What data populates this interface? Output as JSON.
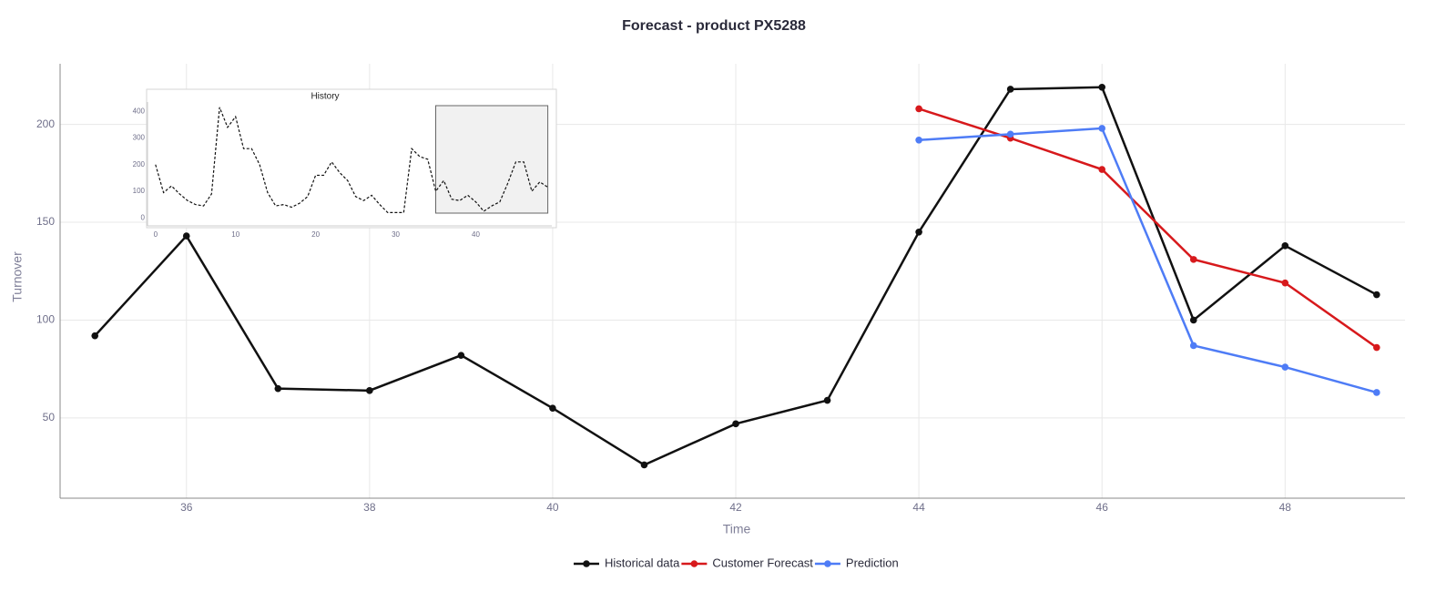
{
  "chart_data": [
    {
      "type": "line",
      "title": "Forecast - product PX5288",
      "x_label": "Time",
      "y_label": "Turnover",
      "x": [
        35,
        36,
        37,
        38,
        39,
        40,
        41,
        42,
        43,
        44,
        45,
        46,
        47,
        48,
        49
      ],
      "series": [
        {
          "name": "Historical data",
          "color": "#111111",
          "values": [
            92,
            143,
            65,
            64,
            82,
            55,
            26,
            47,
            59,
            145,
            218,
            219,
            100,
            138,
            113
          ]
        },
        {
          "name": "Customer Forecast",
          "color": "#d7191c",
          "values": [
            null,
            null,
            null,
            null,
            null,
            null,
            null,
            null,
            null,
            208,
            193,
            177,
            131,
            119,
            86
          ]
        },
        {
          "name": "Prediction",
          "color": "#4e7cf6",
          "values": [
            null,
            null,
            null,
            null,
            null,
            null,
            null,
            null,
            null,
            192,
            195,
            198,
            87,
            76,
            63
          ]
        }
      ],
      "xlim": [
        34.62,
        49.31
      ],
      "xticks": [
        36,
        38,
        40,
        42,
        44,
        46,
        48
      ],
      "ylim": [
        9,
        231
      ],
      "yticks": [
        50,
        100,
        150,
        200
      ],
      "grid": true,
      "legend": "bottom"
    },
    {
      "type": "line",
      "title": "History",
      "x": [
        0,
        1,
        2,
        3,
        4,
        5,
        6,
        7,
        8,
        9,
        10,
        11,
        12,
        13,
        14,
        15,
        16,
        17,
        18,
        19,
        20,
        21,
        22,
        23,
        24,
        25,
        26,
        27,
        28,
        29,
        30,
        31,
        32,
        33,
        34,
        35,
        36,
        37,
        38,
        39,
        40,
        41,
        42,
        43,
        44,
        45,
        46,
        47,
        48,
        49
      ],
      "series": [
        {
          "color": "#111111",
          "line_style": "dashed",
          "values": [
            200,
            95,
            120,
            90,
            65,
            50,
            45,
            90,
            415,
            340,
            380,
            260,
            260,
            200,
            95,
            45,
            50,
            40,
            55,
            80,
            160,
            160,
            210,
            170,
            140,
            80,
            65,
            85,
            50,
            20,
            20,
            20,
            260,
            230,
            220,
            100,
            140,
            70,
            65,
            85,
            60,
            25,
            45,
            60,
            130,
            210,
            210,
            100,
            135,
            115
          ]
        }
      ],
      "xlim": [
        -1,
        49.5
      ],
      "xticks": [
        0,
        10,
        20,
        30,
        40
      ],
      "ylim": [
        -30,
        435
      ],
      "yticks": [
        0,
        100,
        200,
        300,
        400
      ],
      "grid": false
    }
  ]
}
